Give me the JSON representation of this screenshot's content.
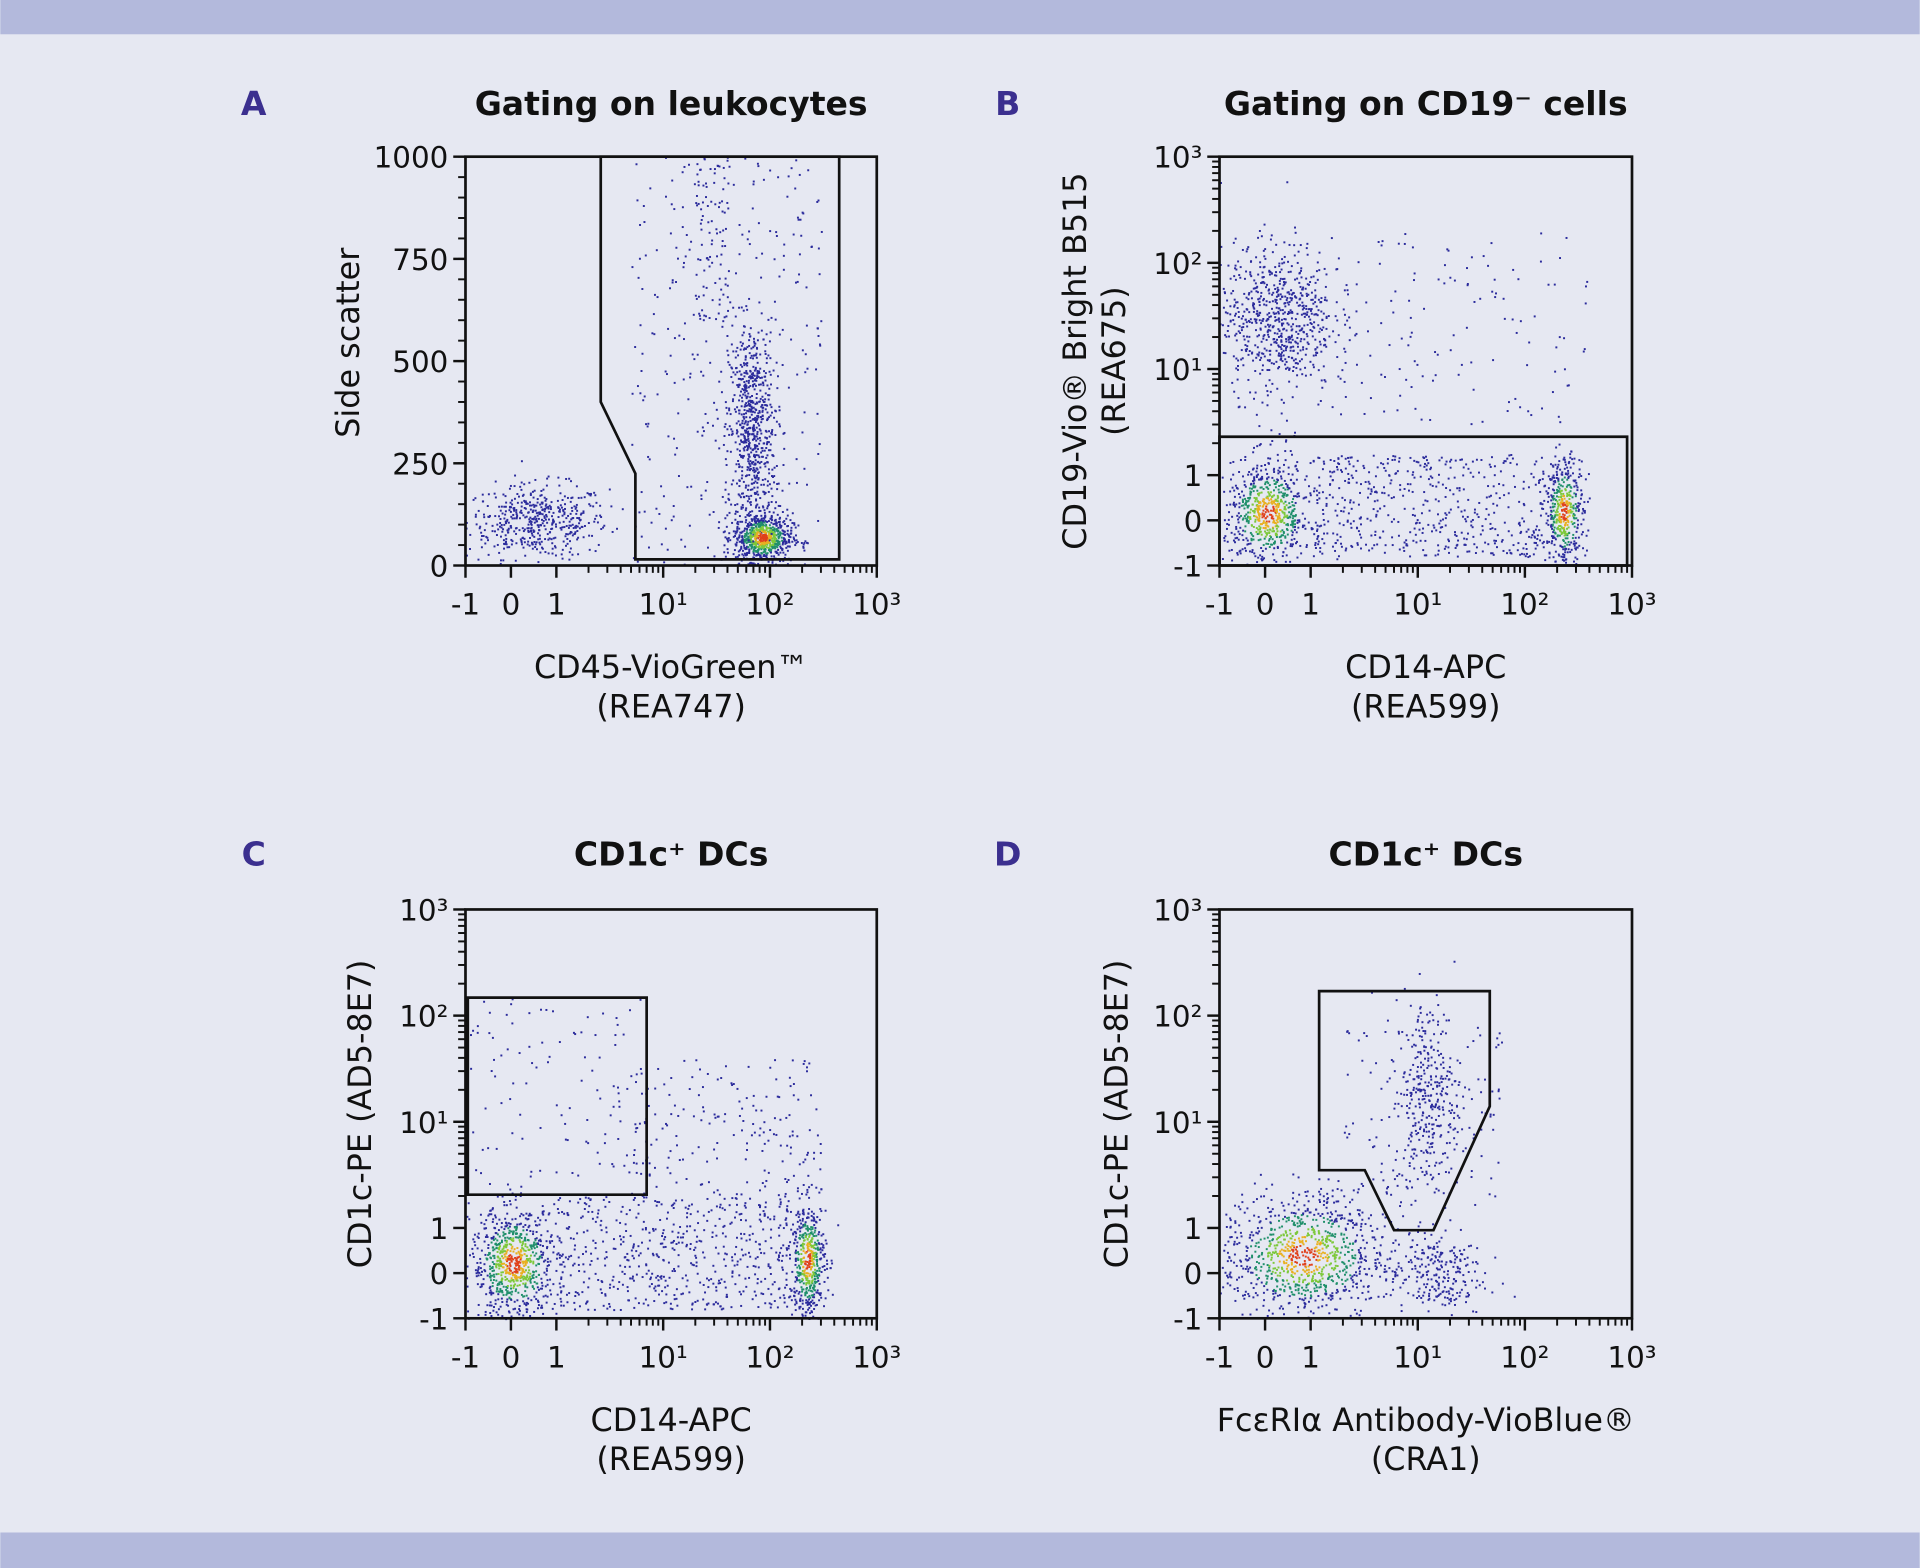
{
  "colors": {
    "background": "#e6e8f2",
    "band": "#b3b9dc",
    "panel_letter": "#3b2f8f",
    "dot_low": "#2b2b9c",
    "dot_mid": "#1f8f6a",
    "dot_high": "#7dc83a",
    "dot_peak": "#e8b020",
    "dot_max": "#e0401a"
  },
  "chart_data": [
    {
      "type": "scatter",
      "letter": "A",
      "title": "Gating on leukocytes",
      "xlabel": [
        "CD45-VioGreen™",
        "(REA747)"
      ],
      "ylabel": [
        "Side scatter"
      ],
      "x_scale": "hyperlog",
      "y_scale": "linear",
      "xlim": [
        -1,
        1000
      ],
      "ylim": [
        0,
        1000
      ],
      "x_ticks": [
        {
          "v": -1,
          "label": "-1"
        },
        {
          "v": 0,
          "label": "0"
        },
        {
          "v": 1,
          "label": "1"
        },
        {
          "v": 10,
          "label": "10¹"
        },
        {
          "v": 100,
          "label": "10²"
        },
        {
          "v": 1000,
          "label": "10³"
        }
      ],
      "y_ticks": [
        {
          "v": 0,
          "label": "0"
        },
        {
          "v": 250,
          "label": "250"
        },
        {
          "v": 500,
          "label": "500"
        },
        {
          "v": 750,
          "label": "750"
        },
        {
          "v": 1000,
          "label": "1000"
        }
      ],
      "gates": [
        [
          [
            2.6,
            1000
          ],
          [
            2.6,
            400
          ],
          [
            5.5,
            225
          ],
          [
            5.5,
            15
          ],
          [
            445,
            15
          ],
          [
            445,
            1000
          ]
        ]
      ],
      "populations": [
        {
          "x": [
            -1,
            3
          ],
          "y": [
            20,
            200
          ],
          "n": 500,
          "dist": "gauss",
          "core": false
        },
        {
          "x": [
            40,
            110
          ],
          "y": [
            60,
            600
          ],
          "n": 700,
          "dist": "gauss",
          "core": false
        },
        {
          "x": [
            45,
            160
          ],
          "y": [
            10,
            130
          ],
          "n": 700,
          "dist": "gauss",
          "core": true
        },
        {
          "x": [
            5,
            300
          ],
          "y": [
            0,
            1000
          ],
          "n": 300,
          "dist": "uniform",
          "core": false
        },
        {
          "x": [
            20,
            40
          ],
          "y": [
            600,
            1000
          ],
          "n": 80,
          "dist": "uniform",
          "core": false
        }
      ]
    },
    {
      "type": "scatter",
      "letter": "B",
      "title": "Gating on CD19⁻ cells",
      "xlabel": [
        "CD14-APC",
        "(REA599)"
      ],
      "ylabel": [
        "CD19-Vio® Bright B515",
        "(REA675)"
      ],
      "x_scale": "hyperlog",
      "y_scale": "hyperlog",
      "xlim": [
        -1,
        1000
      ],
      "ylim": [
        -1,
        1000
      ],
      "x_ticks": [
        {
          "v": -1,
          "label": "-1"
        },
        {
          "v": 0,
          "label": "0"
        },
        {
          "v": 1,
          "label": "1"
        },
        {
          "v": 10,
          "label": "10¹"
        },
        {
          "v": 100,
          "label": "10²"
        },
        {
          "v": 1000,
          "label": "10³"
        }
      ],
      "y_ticks": [
        {
          "v": -1,
          "label": "-1"
        },
        {
          "v": 0,
          "label": "0"
        },
        {
          "v": 1,
          "label": "1"
        },
        {
          "v": 10,
          "label": "10¹"
        },
        {
          "v": 100,
          "label": "10²"
        },
        {
          "v": 1000,
          "label": "10³"
        }
      ],
      "gates": [
        [
          [
            -1,
            -1
          ],
          [
            900,
            -1
          ],
          [
            900,
            2.3
          ],
          [
            -1,
            2.3
          ]
        ]
      ],
      "populations": [
        {
          "x": [
            -1,
            1.6
          ],
          "y": [
            6,
            160
          ],
          "n": 700,
          "dist": "gauss",
          "core": false
        },
        {
          "x": [
            -0.9,
            1
          ],
          "y": [
            -1,
            1.4
          ],
          "n": 700,
          "dist": "gauss",
          "core": true
        },
        {
          "x": [
            150,
            350
          ],
          "y": [
            -1,
            1.5
          ],
          "n": 450,
          "dist": "gauss",
          "core": true
        },
        {
          "x": [
            1,
            150
          ],
          "y": [
            -0.8,
            1.6
          ],
          "n": 500,
          "dist": "uniform",
          "core": false
        },
        {
          "x": [
            1,
            400
          ],
          "y": [
            3,
            200
          ],
          "n": 140,
          "dist": "uniform",
          "core": false
        }
      ]
    },
    {
      "type": "scatter",
      "letter": "C",
      "title": "CD1c⁺ DCs",
      "xlabel": [
        "CD14-APC",
        "(REA599)"
      ],
      "ylabel": [
        "CD1c-PE (AD5-8E7)"
      ],
      "x_scale": "hyperlog",
      "y_scale": "hyperlog",
      "xlim": [
        -1,
        1000
      ],
      "ylim": [
        -1,
        1000
      ],
      "x_ticks": [
        {
          "v": -1,
          "label": "-1"
        },
        {
          "v": 0,
          "label": "0"
        },
        {
          "v": 1,
          "label": "1"
        },
        {
          "v": 10,
          "label": "10¹"
        },
        {
          "v": 100,
          "label": "10²"
        },
        {
          "v": 1000,
          "label": "10³"
        }
      ],
      "y_ticks": [
        {
          "v": -1,
          "label": "-1"
        },
        {
          "v": 0,
          "label": "0"
        },
        {
          "v": 1,
          "label": "1"
        },
        {
          "v": 10,
          "label": "10¹"
        },
        {
          "v": 100,
          "label": "10²"
        },
        {
          "v": 1000,
          "label": "10³"
        }
      ],
      "gates": [
        [
          [
            -0.95,
            2.06
          ],
          [
            7,
            2.06
          ],
          [
            7,
            148
          ],
          [
            -0.95,
            148
          ]
        ]
      ],
      "populations": [
        {
          "x": [
            -0.9,
            1
          ],
          "y": [
            -1,
            1.6
          ],
          "n": 800,
          "dist": "gauss",
          "core": true
        },
        {
          "x": [
            150,
            330
          ],
          "y": [
            -1,
            1.8
          ],
          "n": 500,
          "dist": "gauss",
          "core": true
        },
        {
          "x": [
            1,
            150
          ],
          "y": [
            -0.8,
            2
          ],
          "n": 550,
          "dist": "uniform",
          "core": false
        },
        {
          "x": [
            -0.9,
            7
          ],
          "y": [
            3,
            150
          ],
          "n": 110,
          "dist": "uniform",
          "core": false
        },
        {
          "x": [
            5,
            300
          ],
          "y": [
            2,
            40
          ],
          "n": 180,
          "dist": "uniform",
          "core": false
        }
      ]
    },
    {
      "type": "scatter",
      "letter": "D",
      "title": "CD1c⁺ DCs",
      "xlabel": [
        "FcεRIα Antibody-VioBlue®",
        "(CRA1)"
      ],
      "ylabel": [
        "CD1c-PE (AD5-8E7)"
      ],
      "x_scale": "hyperlog",
      "y_scale": "hyperlog",
      "xlim": [
        -1,
        1000
      ],
      "ylim": [
        -1,
        1000
      ],
      "x_ticks": [
        {
          "v": -1,
          "label": "-1"
        },
        {
          "v": 0,
          "label": "0"
        },
        {
          "v": 1,
          "label": "1"
        },
        {
          "v": 10,
          "label": "10¹"
        },
        {
          "v": 100,
          "label": "10²"
        },
        {
          "v": 1000,
          "label": "10³"
        }
      ],
      "y_ticks": [
        {
          "v": -1,
          "label": "-1"
        },
        {
          "v": 0,
          "label": "0"
        },
        {
          "v": 1,
          "label": "1"
        },
        {
          "v": 10,
          "label": "10¹"
        },
        {
          "v": 100,
          "label": "10²"
        },
        {
          "v": 1000,
          "label": "10³"
        }
      ],
      "gates": [
        [
          [
            1.2,
            170
          ],
          [
            47,
            170
          ],
          [
            47,
            14
          ],
          [
            14,
            0.95
          ],
          [
            6,
            0.95
          ],
          [
            3.2,
            3.5
          ],
          [
            1.2,
            3.5
          ]
        ]
      ],
      "populations": [
        {
          "x": [
            -1,
            5
          ],
          "y": [
            -1,
            2.2
          ],
          "n": 1000,
          "dist": "gauss",
          "core": true
        },
        {
          "x": [
            6,
            25
          ],
          "y": [
            2,
            150
          ],
          "n": 350,
          "dist": "gauss",
          "core": false
        },
        {
          "x": [
            5,
            40
          ],
          "y": [
            -1,
            1
          ],
          "n": 250,
          "dist": "gauss",
          "core": false
        },
        {
          "x": [
            2,
            60
          ],
          "y": [
            2,
            100
          ],
          "n": 100,
          "dist": "uniform",
          "core": false
        }
      ]
    }
  ]
}
